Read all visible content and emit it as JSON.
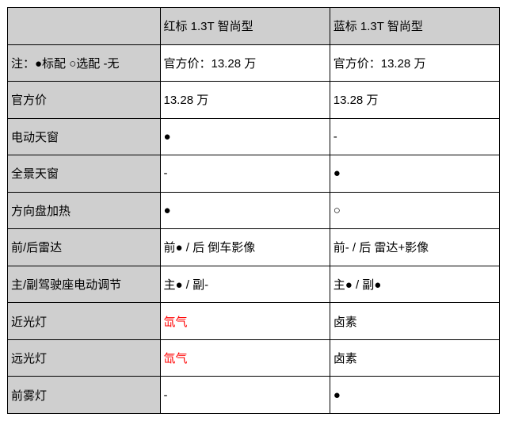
{
  "table": {
    "colors": {
      "header_bg": "#cfcfcf",
      "border": "#000000",
      "text": "#000000",
      "highlight_text": "#ff0000",
      "cell_bg": "#ffffff"
    },
    "columns": [
      "",
      "红标 1.3T 智尚型",
      "蓝标 1.3T 智尚型"
    ],
    "legend_row": {
      "label": "注：●标配 ○选配 -无",
      "col1": "官方价：13.28 万",
      "col2": "官方价：13.28 万"
    },
    "rows": [
      {
        "label": "官方价",
        "col1": "13.28 万",
        "col2": "13.28 万"
      },
      {
        "label": "电动天窗",
        "col1": "●",
        "col2": "-"
      },
      {
        "label": "全景天窗",
        "col1": "-",
        "col2": "●"
      },
      {
        "label": "方向盘加热",
        "col1": "●",
        "col2": "○"
      },
      {
        "label": "前/后雷达",
        "col1": "前● / 后 倒车影像",
        "col2": "前- / 后 雷达+影像"
      },
      {
        "label": "主/副驾驶座电动调节",
        "col1": "主● / 副-",
        "col2": "主● / 副●"
      },
      {
        "label": "近光灯",
        "col1": "氙气",
        "col2": "卤素",
        "col1_red": true
      },
      {
        "label": "远光灯",
        "col1": "氙气",
        "col2": "卤素",
        "col1_red": true
      },
      {
        "label": "前雾灯",
        "col1": "-",
        "col2": "●"
      }
    ]
  }
}
